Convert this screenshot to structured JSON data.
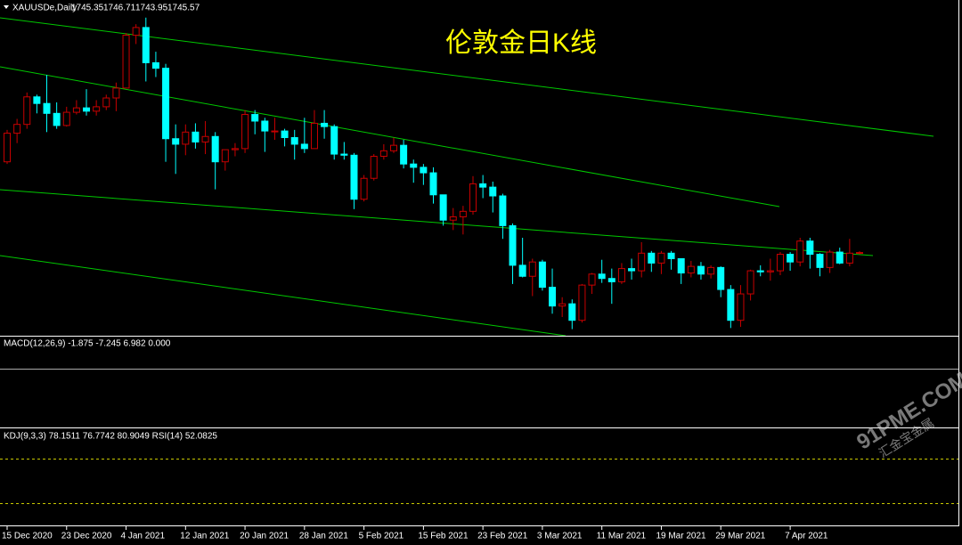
{
  "chart_data": {
    "type": "candlestick",
    "title": "伦敦金日K线",
    "symbol": "XAUUSDe,Daily",
    "categories": [
      "15 Dec 2020",
      null,
      null,
      null,
      null,
      null,
      "23 Dec 2020",
      null,
      null,
      null,
      null,
      null,
      "4 Jan 2021",
      null,
      null,
      null,
      null,
      null,
      "12 Jan 2021",
      null,
      null,
      null,
      null,
      null,
      "20 Jan 2021",
      null,
      null,
      null,
      null,
      null,
      "28 Jan 2021",
      null,
      null,
      null,
      null,
      null,
      "5 Feb 2021",
      null,
      null,
      null,
      null,
      null,
      "15 Feb 2021",
      null,
      null,
      null,
      null,
      null,
      "23 Feb 2021",
      null,
      null,
      null,
      null,
      null,
      "3 Mar 2021",
      null,
      null,
      null,
      null,
      null,
      "11 Mar 2021",
      null,
      null,
      null,
      null,
      null,
      "19 Mar 2021",
      null,
      null,
      null,
      null,
      null,
      "29 Mar 2021",
      null,
      null,
      null,
      null,
      null,
      null,
      "7 Apr 2021",
      null,
      null,
      null,
      null,
      null,
      null,
      null
    ],
    "open": [
      1828,
      1854,
      1862,
      1887,
      1881,
      1872,
      1861,
      1873,
      1877,
      1874,
      1878,
      1886,
      1895,
      1943,
      1950,
      1918,
      1913,
      1849,
      1844,
      1855,
      1846,
      1851,
      1828,
      1839,
      1840,
      1871,
      1865,
      1856,
      1856,
      1850,
      1844,
      1840,
      1863,
      1860,
      1835,
      1834,
      1794,
      1813,
      1833,
      1838,
      1843,
      1826,
      1823,
      1818,
      1798,
      1775,
      1778,
      1783,
      1808,
      1805,
      1797,
      1770,
      1734,
      1724,
      1737,
      1714,
      1697,
      1699,
      1684,
      1716,
      1726,
      1722,
      1719,
      1731,
      1729,
      1745,
      1736,
      1745,
      1740,
      1727,
      1733,
      1726,
      1732,
      1712,
      1684,
      1708,
      1729,
      1728,
      1729,
      1744,
      1737,
      1756,
      1744,
      1732,
      1746,
      1736,
      1745.35
    ],
    "high": [
      1857,
      1867,
      1891,
      1889,
      1907,
      1882,
      1878,
      1884,
      1894,
      1884,
      1889,
      1900,
      1945,
      1953,
      1959,
      1928,
      1917,
      1862,
      1862,
      1863,
      1865,
      1855,
      1839,
      1845,
      1875,
      1875,
      1868,
      1868,
      1858,
      1857,
      1868,
      1875,
      1875,
      1862,
      1846,
      1836,
      1816,
      1835,
      1844,
      1850,
      1848,
      1830,
      1826,
      1823,
      1798,
      1786,
      1788,
      1815,
      1816,
      1810,
      1799,
      1772,
      1759,
      1740,
      1739,
      1731,
      1705,
      1703,
      1717,
      1727,
      1739,
      1731,
      1736,
      1740,
      1755,
      1747,
      1747,
      1747,
      1740,
      1738,
      1737,
      1734,
      1733,
      1716,
      1716,
      1730,
      1734,
      1740,
      1746,
      1746,
      1759,
      1759,
      1745,
      1748,
      1750,
      1758,
      1746.71
    ],
    "low": [
      1826,
      1845,
      1858,
      1872,
      1855,
      1858,
      1860,
      1871,
      1870,
      1870,
      1875,
      1874,
      1895,
      1935,
      1901,
      1905,
      1828,
      1817,
      1834,
      1840,
      1835,
      1803,
      1820,
      1833,
      1836,
      1853,
      1837,
      1848,
      1842,
      1830,
      1836,
      1842,
      1849,
      1830,
      1830,
      1785,
      1792,
      1811,
      1830,
      1836,
      1822,
      1809,
      1807,
      1790,
      1770,
      1766,
      1762,
      1780,
      1795,
      1782,
      1758,
      1717,
      1723,
      1706,
      1711,
      1690,
      1687,
      1676,
      1682,
      1708,
      1718,
      1699,
      1717,
      1721,
      1723,
      1728,
      1726,
      1730,
      1717,
      1723,
      1721,
      1722,
      1705,
      1677,
      1678,
      1702,
      1724,
      1720,
      1725,
      1729,
      1733,
      1731,
      1724,
      1727,
      1735,
      1733,
      1743.95
    ],
    "close": [
      1854,
      1862,
      1887,
      1881,
      1872,
      1861,
      1873,
      1877,
      1874,
      1878,
      1886,
      1895,
      1943,
      1950,
      1918,
      1913,
      1849,
      1844,
      1855,
      1846,
      1851,
      1828,
      1839,
      1840,
      1871,
      1865,
      1856,
      1856,
      1850,
      1844,
      1840,
      1863,
      1860,
      1835,
      1834,
      1794,
      1813,
      1833,
      1838,
      1843,
      1826,
      1823,
      1818,
      1798,
      1775,
      1778,
      1783,
      1808,
      1805,
      1797,
      1770,
      1734,
      1724,
      1737,
      1714,
      1697,
      1699,
      1684,
      1716,
      1726,
      1722,
      1719,
      1731,
      1729,
      1745,
      1736,
      1745,
      1740,
      1727,
      1733,
      1726,
      1732,
      1712,
      1684,
      1708,
      1729,
      1728,
      1729,
      1744,
      1737,
      1756,
      1744,
      1732,
      1746,
      1736,
      1745,
      1745.57
    ],
    "ylim": [
      1670,
      1975
    ],
    "up_color": "#c80000",
    "down_color": "#00ffff"
  },
  "indicators": {
    "macd_label": "MACD(12,26,9) -1.875 -7.245 6.982 0.000",
    "kdj_label": "KDJ(9,3,3) 78.1511 76.7742 80.9049  RSI(14) 52.0825"
  },
  "watermark": {
    "text": "91PME.COM",
    "subtext": "汇金宝金属"
  }
}
